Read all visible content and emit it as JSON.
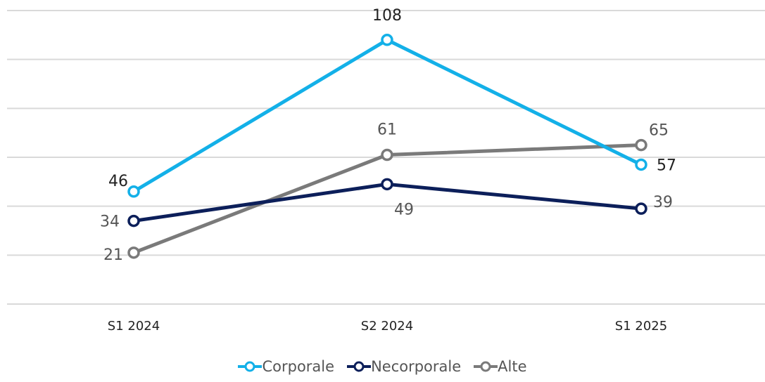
{
  "chart_data": {
    "type": "line",
    "categories": [
      "S1 2024",
      "S2 2024",
      "S1 2025"
    ],
    "series": [
      {
        "name": "Corporale",
        "values": [
          46,
          108,
          57
        ],
        "color": "#13b0e8",
        "label_color": "#222222"
      },
      {
        "name": "Necorporale",
        "values": [
          34,
          49,
          39
        ],
        "color": "#0c1f5a",
        "label_color": "#555555"
      },
      {
        "name": "Alte",
        "values": [
          21,
          61,
          65
        ],
        "color": "#7a7a7a",
        "label_color": "#555555"
      }
    ],
    "ylim": [
      0,
      120
    ],
    "grid": true,
    "legend_position": "bottom"
  }
}
